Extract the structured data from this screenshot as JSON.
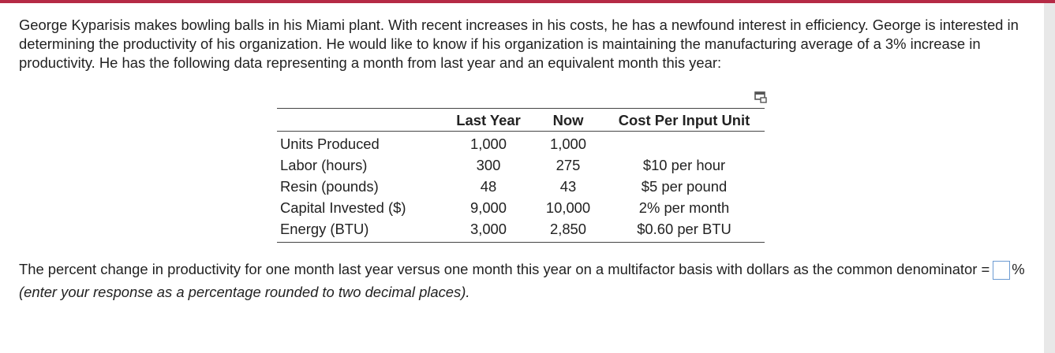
{
  "problem": {
    "intro": "George Kyparisis makes bowling balls in his Miami plant. With recent increases in his costs, he has a newfound interest in efficiency. George is interested in determining the productivity of his organization. He would like to know if his organization is maintaining the manufacturing average of a 3% increase in productivity. He has the following data representing a month from last year and an equivalent month this year:"
  },
  "table": {
    "headers": {
      "last_year": "Last Year",
      "now": "Now",
      "cost": "Cost Per Input Unit"
    },
    "rows": [
      {
        "label": "Units Produced",
        "last_year": "1,000",
        "now": "1,000",
        "cost": ""
      },
      {
        "label": "Labor (hours)",
        "last_year": "300",
        "now": "275",
        "cost": "$10 per hour"
      },
      {
        "label": "Resin (pounds)",
        "last_year": "48",
        "now": "43",
        "cost": "$5 per pound"
      },
      {
        "label": "Capital Invested ($)",
        "last_year": "9,000",
        "now": "10,000",
        "cost": "2% per month"
      },
      {
        "label": "Energy (BTU)",
        "last_year": "3,000",
        "now": "2,850",
        "cost": "$0.60 per BTU"
      }
    ]
  },
  "question": {
    "text_before": "The percent change in productivity for one month last year versus one month this year on a multifactor basis with dollars as the common denominator =",
    "answer_value": "",
    "percent_sign": "%",
    "hint": "(enter your response as a percentage rounded to two decimal places)."
  },
  "colors": {
    "accent_bar": "#b52a45",
    "input_border": "#6c9bd2"
  }
}
